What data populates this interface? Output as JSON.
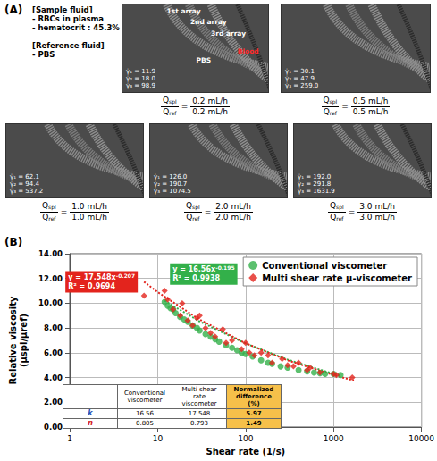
{
  "panel_a": {
    "letter": "(A)",
    "sample_heading": "[Sample fluid]",
    "sample_lines": [
      "- RBCs in plasma",
      "- hematocrit : 45.3%"
    ],
    "reference_heading": "[Reference fluid]",
    "reference_lines": [
      "- PBS"
    ],
    "image_labels": {
      "arrays": [
        "1st array",
        "2nd array",
        "3rd array"
      ],
      "blood": "Blood",
      "pbs": "PBS"
    },
    "ratio": {
      "num_symbol": "Q",
      "num_sub": "spl",
      "den_symbol": "Q",
      "den_sub": "ref",
      "relation": "="
    },
    "images": [
      {
        "shear_rates": [
          "γ̇₁ = 11.9",
          "γ̇₂ = 18.0",
          "γ̇₃ = 98.9"
        ],
        "q_spl": "0.2 mL/h",
        "q_ref": "0.2 mL/h"
      },
      {
        "shear_rates": [
          "γ̇₁ = 30.1",
          "γ̇₂ = 47.9",
          "γ̇₃ = 259.0"
        ],
        "q_spl": "0.5 mL/h",
        "q_ref": "0.5 mL/h"
      },
      {
        "shear_rates": [
          "γ̇₁ = 62.1",
          "γ̇₂ = 94.4",
          "γ̇₃ = 537.2"
        ],
        "q_spl": "1.0 mL/h",
        "q_ref": "1.0 mL/h"
      },
      {
        "shear_rates": [
          "γ̇₁ = 126.0",
          "γ̇₂ = 190.7",
          "γ̇₃ = 1074.5"
        ],
        "q_spl": "2.0 mL/h",
        "q_ref": "2.0 mL/h"
      },
      {
        "shear_rates": [
          "γ̇₁ = 192.0",
          "γ̇₂ = 291.8",
          "γ̇₃ = 1631.9"
        ],
        "q_spl": "3.0 mL/h",
        "q_ref": "3.0 mL/h"
      }
    ]
  },
  "chart_data": {
    "type": "scatter",
    "letter": "(B)",
    "x_label": "Shear rate (1/s)",
    "y_label": "Relative viscosity (μspl/μref)",
    "log": "x",
    "grid": true,
    "legend": "upper right",
    "xlim": [
      1,
      10000
    ],
    "xticks": [
      1,
      10,
      100,
      1000,
      10000
    ],
    "ylim": [
      0,
      14
    ],
    "yticks": [
      {
        "value": 0,
        "label": "0.00"
      },
      {
        "value": 2,
        "label": "2.00"
      },
      {
        "value": 4,
        "label": "4.00"
      },
      {
        "value": 6,
        "label": "6.00"
      },
      {
        "value": 8,
        "label": "8.00"
      },
      {
        "value": 10,
        "label": "10.00"
      },
      {
        "value": 12,
        "label": "12.00"
      },
      {
        "value": 14,
        "label": "14.00"
      }
    ],
    "series": [
      {
        "name": "Conventional viscometer",
        "color": "#33b04a",
        "marker": "circle",
        "x": [
          12,
          13,
          14,
          15,
          16,
          18,
          20,
          22,
          25,
          28,
          30,
          35,
          40,
          45,
          50,
          60,
          70,
          80,
          90,
          100,
          120,
          150,
          180,
          200,
          250,
          300,
          400,
          500,
          600,
          700,
          800,
          1000,
          1200
        ],
        "values": [
          10.1,
          9.8,
          9.6,
          9.5,
          9.2,
          8.9,
          8.7,
          8.5,
          8.2,
          8.0,
          7.8,
          7.5,
          7.3,
          7.1,
          6.9,
          6.6,
          6.4,
          6.2,
          6.0,
          5.9,
          5.7,
          5.4,
          5.2,
          5.1,
          4.9,
          4.8,
          4.6,
          4.5,
          4.4,
          4.35,
          4.3,
          4.3,
          4.2
        ]
      },
      {
        "name": "Multi shear rate μ-viscometer",
        "color": "#e3241d",
        "marker": "diamond",
        "x": [
          7,
          12,
          13,
          15,
          18,
          19,
          22,
          25,
          28,
          30,
          35,
          40,
          45,
          55,
          60,
          70,
          90,
          100,
          110,
          126,
          150,
          180,
          200,
          260,
          300,
          350,
          400,
          500,
          540,
          700,
          1000,
          1075,
          1632
        ],
        "values": [
          10.6,
          11.0,
          10.3,
          9.5,
          9.0,
          10.0,
          8.6,
          8.2,
          8.8,
          9.0,
          8.0,
          7.6,
          7.3,
          7.9,
          6.8,
          7.0,
          6.3,
          6.8,
          6.0,
          5.8,
          6.0,
          5.8,
          5.2,
          5.5,
          5.0,
          4.9,
          5.2,
          4.6,
          4.8,
          4.4,
          4.3,
          4.2,
          4.0
        ]
      }
    ],
    "trendlines": [
      {
        "color": "#33b04a",
        "line_style": "dotted",
        "x": [
          12,
          30,
          100,
          300,
          1000,
          1200
        ],
        "values": [
          10.2,
          8.53,
          6.75,
          5.45,
          4.3,
          4.16
        ],
        "equation": "y = 16.56x",
        "exponent": "-0.195",
        "r_squared": "R² = 0.9938"
      },
      {
        "color": "#e3241d",
        "line_style": "dotted",
        "x": [
          7,
          10,
          30,
          100,
          300,
          1000,
          1700
        ],
        "values": [
          11.73,
          10.9,
          8.68,
          6.77,
          5.39,
          4.2,
          3.76
        ],
        "equation": "y = 17.548x",
        "exponent": "-0.207",
        "r_squared": "R² = 0.9694"
      }
    ],
    "table": {
      "columns": [
        "Conventional viscometer",
        "Multi shear rate viscometer",
        "Normalized difference (%)"
      ],
      "rows": [
        {
          "label": "k",
          "values": [
            16.56,
            17.548,
            5.97
          ]
        },
        {
          "label": "n",
          "values": [
            0.805,
            0.793,
            1.49
          ]
        }
      ]
    }
  }
}
